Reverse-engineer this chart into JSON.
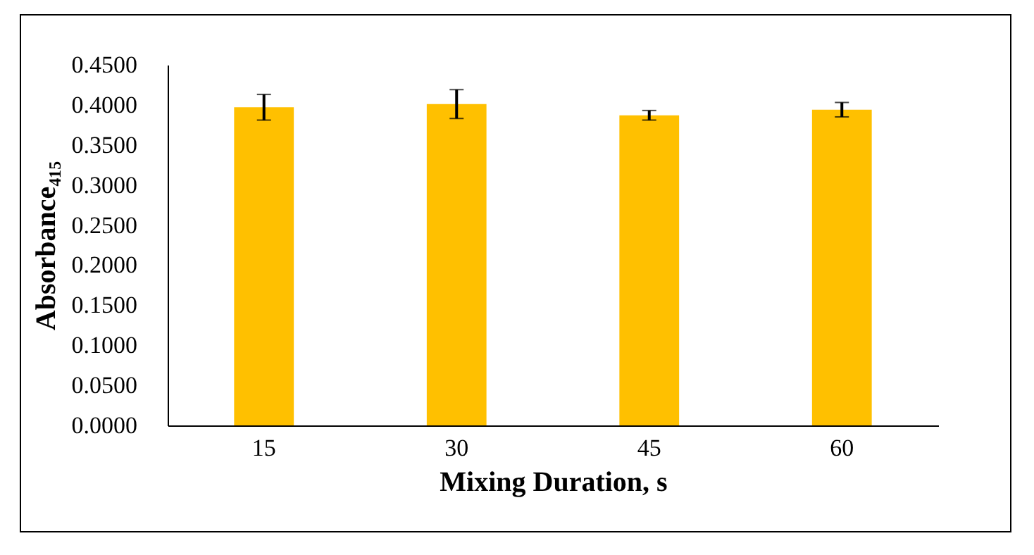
{
  "chart_data": {
    "type": "bar",
    "categories": [
      "15",
      "30",
      "45",
      "60"
    ],
    "values": [
      0.397,
      0.401,
      0.387,
      0.394
    ],
    "errors": [
      0.016,
      0.018,
      0.006,
      0.009
    ],
    "color": "#ffc000",
    "xlabel": "Mixing Duration, s",
    "ylabel": "Absorbance₄₁₅",
    "ylim": [
      0,
      0.45
    ],
    "yticks": [
      {
        "value": 0,
        "label": "0.0000"
      },
      {
        "value": 0.05,
        "label": "0.0500"
      },
      {
        "value": 0.1,
        "label": "0.1000"
      },
      {
        "value": 0.15,
        "label": "0.1500"
      },
      {
        "value": 0.2,
        "label": "0.2000"
      },
      {
        "value": 0.25,
        "label": "0.2500"
      },
      {
        "value": 0.3,
        "label": "0.3000"
      },
      {
        "value": 0.35,
        "label": "0.3500"
      },
      {
        "value": 0.4,
        "label": "0.4000"
      },
      {
        "value": 0.45,
        "label": "0.4500"
      }
    ],
    "grid": false
  }
}
